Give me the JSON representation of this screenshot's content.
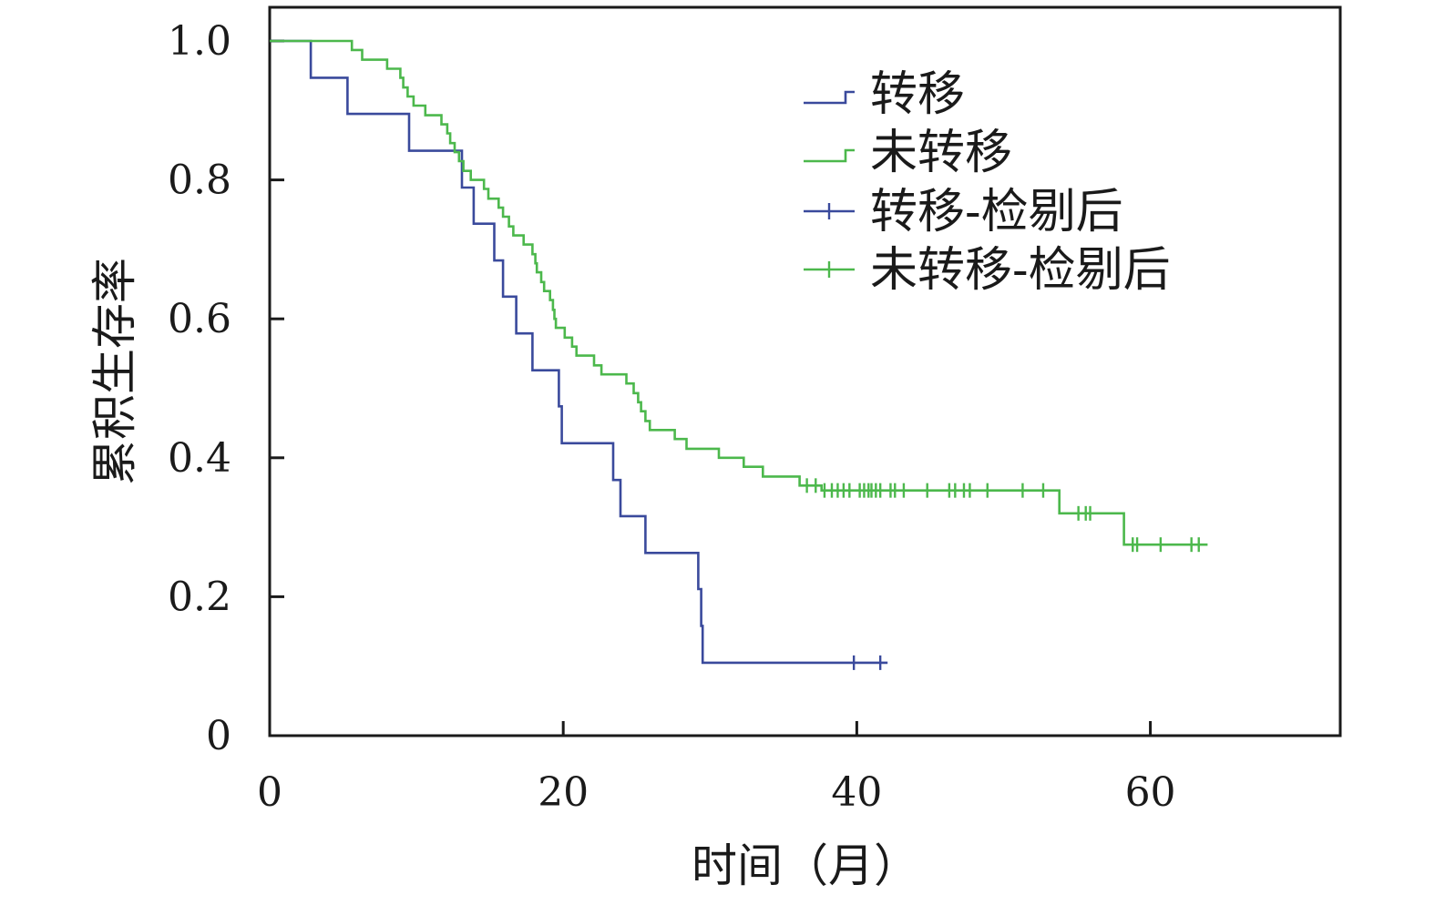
{
  "chart_data": {
    "type": "line",
    "subtype": "kaplan-meier step survival curve with censor marks",
    "xlabel": "时间（月）",
    "ylabel": "累积生存率",
    "xlim": [
      0,
      73
    ],
    "ylim": [
      0,
      1.0
    ],
    "x_ticks": [
      0,
      20,
      40,
      60
    ],
    "x_tick_labels": [
      "0",
      "20",
      "40",
      "60"
    ],
    "y_ticks": [
      0,
      0.2,
      0.4,
      0.6,
      0.8,
      1.0
    ],
    "y_tick_labels": [
      "0",
      "0.2",
      "0.4",
      "0.6",
      "0.8",
      "1.0"
    ],
    "grid": false,
    "legend_position": "top-right",
    "legend": [
      "转移",
      "未转移",
      "转移-检剔后",
      "未转移-检剔后"
    ],
    "colors": {
      "metastasis": "#3a4a9c",
      "no_metastasis": "#4cb84c",
      "axis": "#1a1a1a"
    },
    "series": [
      {
        "name": "转移",
        "censor_legend": "转移-检剔后",
        "color": "#3a4a9c",
        "steps": [
          [
            0,
            1.0
          ],
          [
            2.8,
            0.947
          ],
          [
            5.3,
            0.895
          ],
          [
            9.5,
            0.842
          ],
          [
            13.1,
            0.789
          ],
          [
            13.9,
            0.737
          ],
          [
            15.3,
            0.684
          ],
          [
            15.9,
            0.632
          ],
          [
            16.8,
            0.579
          ],
          [
            17.9,
            0.526
          ],
          [
            19.7,
            0.474
          ],
          [
            19.9,
            0.421
          ],
          [
            23.4,
            0.368
          ],
          [
            23.9,
            0.316
          ],
          [
            25.6,
            0.263
          ],
          [
            29.2,
            0.211
          ],
          [
            29.4,
            0.158
          ],
          [
            29.5,
            0.105
          ]
        ],
        "end_x": 42.1,
        "censored": [
          [
            39.8,
            0.105
          ],
          [
            41.6,
            0.105
          ]
        ]
      },
      {
        "name": "未转移",
        "censor_legend": "未转移-检剔后",
        "color": "#4cb84c",
        "steps": [
          [
            0,
            1.0
          ],
          [
            5.6,
            0.987
          ],
          [
            6.3,
            0.973
          ],
          [
            8.0,
            0.96
          ],
          [
            8.9,
            0.947
          ],
          [
            9.1,
            0.933
          ],
          [
            9.4,
            0.92
          ],
          [
            9.8,
            0.907
          ],
          [
            10.6,
            0.893
          ],
          [
            11.7,
            0.88
          ],
          [
            12.1,
            0.867
          ],
          [
            12.3,
            0.853
          ],
          [
            12.6,
            0.84
          ],
          [
            12.9,
            0.827
          ],
          [
            13.2,
            0.813
          ],
          [
            13.7,
            0.8
          ],
          [
            14.6,
            0.787
          ],
          [
            14.9,
            0.773
          ],
          [
            15.6,
            0.76
          ],
          [
            15.9,
            0.747
          ],
          [
            16.3,
            0.733
          ],
          [
            16.6,
            0.72
          ],
          [
            17.3,
            0.707
          ],
          [
            17.9,
            0.693
          ],
          [
            18.1,
            0.68
          ],
          [
            18.2,
            0.667
          ],
          [
            18.5,
            0.653
          ],
          [
            18.7,
            0.64
          ],
          [
            19.1,
            0.627
          ],
          [
            19.3,
            0.613
          ],
          [
            19.4,
            0.6
          ],
          [
            19.5,
            0.587
          ],
          [
            20.1,
            0.573
          ],
          [
            20.6,
            0.56
          ],
          [
            20.9,
            0.547
          ],
          [
            22.1,
            0.533
          ],
          [
            22.6,
            0.52
          ],
          [
            24.3,
            0.507
          ],
          [
            24.8,
            0.493
          ],
          [
            25.1,
            0.48
          ],
          [
            25.3,
            0.467
          ],
          [
            25.6,
            0.453
          ],
          [
            25.9,
            0.44
          ],
          [
            27.6,
            0.427
          ],
          [
            28.4,
            0.413
          ],
          [
            30.6,
            0.4
          ],
          [
            32.3,
            0.387
          ],
          [
            33.6,
            0.373
          ],
          [
            36.1,
            0.36
          ]
        ],
        "tail_steps": [
          [
            37.6,
            0.353
          ],
          [
            53.8,
            0.32
          ],
          [
            58.2,
            0.275
          ]
        ],
        "end_x": 63.9,
        "censored": [
          [
            36.6,
            0.36
          ],
          [
            37.2,
            0.36
          ],
          [
            37.8,
            0.353
          ],
          [
            38.3,
            0.353
          ],
          [
            38.7,
            0.353
          ],
          [
            39.1,
            0.353
          ],
          [
            39.5,
            0.353
          ],
          [
            40.2,
            0.353
          ],
          [
            40.5,
            0.353
          ],
          [
            40.8,
            0.353
          ],
          [
            41.0,
            0.353
          ],
          [
            41.3,
            0.353
          ],
          [
            41.6,
            0.353
          ],
          [
            42.3,
            0.353
          ],
          [
            42.6,
            0.353
          ],
          [
            43.2,
            0.353
          ],
          [
            44.8,
            0.353
          ],
          [
            46.3,
            0.353
          ],
          [
            46.7,
            0.353
          ],
          [
            47.3,
            0.353
          ],
          [
            47.7,
            0.353
          ],
          [
            48.9,
            0.353
          ],
          [
            51.3,
            0.353
          ],
          [
            52.7,
            0.353
          ],
          [
            55.1,
            0.32
          ],
          [
            55.6,
            0.32
          ],
          [
            55.9,
            0.32
          ],
          [
            58.8,
            0.275
          ],
          [
            59.1,
            0.275
          ],
          [
            60.7,
            0.275
          ],
          [
            62.8,
            0.275
          ],
          [
            63.3,
            0.275
          ]
        ]
      }
    ]
  }
}
